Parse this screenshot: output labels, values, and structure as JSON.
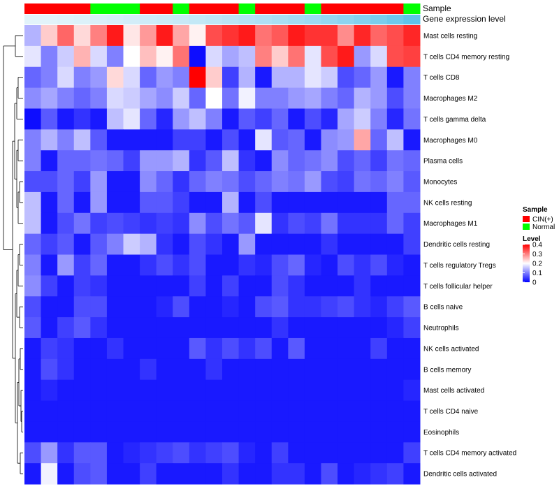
{
  "chart_data": {
    "type": "heatmap",
    "title": "",
    "annotation_tracks": [
      {
        "name": "Sample",
        "label": "Sample"
      },
      {
        "name": "Gene expression level",
        "label": "Gene expression level"
      }
    ],
    "sample_groups": [
      "CIN(+)",
      "CIN(+)",
      "CIN(+)",
      "CIN(+)",
      "Normal",
      "Normal",
      "Normal",
      "CIN(+)",
      "CIN(+)",
      "Normal",
      "CIN(+)",
      "CIN(+)",
      "CIN(+)",
      "Normal",
      "CIN(+)",
      "CIN(+)",
      "CIN(+)",
      "Normal",
      "CIN(+)",
      "CIN(+)",
      "CIN(+)",
      "CIN(+)",
      "CIN(+)",
      "Normal"
    ],
    "expression_level": [
      0.05,
      0.05,
      0.07,
      0.09,
      0.11,
      0.13,
      0.15,
      0.18,
      0.2,
      0.22,
      0.25,
      0.28,
      0.31,
      0.35,
      0.38,
      0.42,
      0.46,
      0.5,
      0.55,
      0.6,
      0.66,
      0.72,
      0.8,
      0.9
    ],
    "rows": [
      "Mast cells resting",
      "T cells CD4 memory resting",
      "T cells CD8",
      "Macrophages M2",
      "T cells gamma delta",
      "Macrophages M0",
      "Plasma cells",
      "Monocytes",
      "NK cells resting",
      "Macrophages M1",
      "Dendritic cells resting",
      "T cells regulatory  Tregs",
      "T cells follicular helper",
      "B cells naive",
      "Neutrophils",
      "NK cells activated",
      "B cells memory",
      "Mast cells activated",
      "T cells CD4 naive",
      "Eosinophils",
      "T cells CD4 memory activated",
      "Dendritic cells activated"
    ],
    "values": [
      [
        0.14,
        0.24,
        0.32,
        0.23,
        0.3,
        0.38,
        0.22,
        0.28,
        0.38,
        0.27,
        0.21,
        0.34,
        0.36,
        0.38,
        0.31,
        0.33,
        0.38,
        0.36,
        0.36,
        0.29,
        0.37,
        0.32,
        0.34,
        0.37
      ],
      [
        0.18,
        0.1,
        0.16,
        0.26,
        0.17,
        0.1,
        0.2,
        0.25,
        0.21,
        0.31,
        0.01,
        0.17,
        0.13,
        0.15,
        0.3,
        0.24,
        0.31,
        0.18,
        0.34,
        0.38,
        0.12,
        0.17,
        0.34,
        0.35
      ],
      [
        0.08,
        0.1,
        0.17,
        0.1,
        0.12,
        0.23,
        0.17,
        0.08,
        0.12,
        0.1,
        0.4,
        0.24,
        0.05,
        0.14,
        0.02,
        0.14,
        0.14,
        0.18,
        0.16,
        0.06,
        0.08,
        0.12,
        0.02,
        0.1
      ],
      [
        0.11,
        0.13,
        0.1,
        0.08,
        0.1,
        0.17,
        0.16,
        0.13,
        0.11,
        0.16,
        0.08,
        0.2,
        0.09,
        0.19,
        0.1,
        0.1,
        0.12,
        0.13,
        0.1,
        0.08,
        0.14,
        0.12,
        0.06,
        0.1
      ],
      [
        0.01,
        0.07,
        0.02,
        0.04,
        0.02,
        0.15,
        0.18,
        0.08,
        0.03,
        0.12,
        0.15,
        0.1,
        0.02,
        0.07,
        0.05,
        0.08,
        0.02,
        0.06,
        0.03,
        0.13,
        0.16,
        0.1,
        0.03,
        0.09
      ],
      [
        0.1,
        0.14,
        0.1,
        0.15,
        0.07,
        0.02,
        0.02,
        0.02,
        0.02,
        0.05,
        0.05,
        0.02,
        0.06,
        0.02,
        0.18,
        0.07,
        0.08,
        0.02,
        0.11,
        0.12,
        0.27,
        0.08,
        0.15,
        0.02
      ],
      [
        0.1,
        0.02,
        0.08,
        0.08,
        0.09,
        0.08,
        0.05,
        0.12,
        0.12,
        0.14,
        0.04,
        0.07,
        0.15,
        0.04,
        0.02,
        0.11,
        0.08,
        0.09,
        0.11,
        0.06,
        0.08,
        0.05,
        0.09,
        0.08
      ],
      [
        0.06,
        0.06,
        0.08,
        0.05,
        0.12,
        0.02,
        0.02,
        0.11,
        0.08,
        0.04,
        0.08,
        0.1,
        0.09,
        0.06,
        0.08,
        0.1,
        0.09,
        0.12,
        0.06,
        0.05,
        0.09,
        0.08,
        0.1,
        0.07
      ],
      [
        0.15,
        0.02,
        0.08,
        0.02,
        0.12,
        0.02,
        0.02,
        0.07,
        0.07,
        0.05,
        0.02,
        0.02,
        0.14,
        0.02,
        0.06,
        0.02,
        0.02,
        0.02,
        0.02,
        0.02,
        0.02,
        0.02,
        0.08,
        0.08
      ],
      [
        0.15,
        0.02,
        0.06,
        0.09,
        0.05,
        0.06,
        0.05,
        0.04,
        0.05,
        0.04,
        0.11,
        0.06,
        0.09,
        0.07,
        0.18,
        0.04,
        0.06,
        0.05,
        0.09,
        0.04,
        0.04,
        0.04,
        0.08,
        0.05
      ],
      [
        0.08,
        0.05,
        0.07,
        0.02,
        0.07,
        0.1,
        0.16,
        0.14,
        0.04,
        0.02,
        0.06,
        0.04,
        0.02,
        0.12,
        0.02,
        0.02,
        0.02,
        0.02,
        0.04,
        0.02,
        0.02,
        0.02,
        0.02,
        0.05
      ],
      [
        0.1,
        0.02,
        0.12,
        0.05,
        0.08,
        0.02,
        0.02,
        0.04,
        0.06,
        0.04,
        0.06,
        0.02,
        0.02,
        0.04,
        0.03,
        0.06,
        0.08,
        0.03,
        0.02,
        0.06,
        0.04,
        0.06,
        0.03,
        0.02
      ],
      [
        0.11,
        0.05,
        0.02,
        0.05,
        0.04,
        0.02,
        0.02,
        0.02,
        0.02,
        0.02,
        0.05,
        0.02,
        0.05,
        0.02,
        0.02,
        0.06,
        0.04,
        0.02,
        0.02,
        0.02,
        0.04,
        0.02,
        0.02,
        0.02
      ],
      [
        0.06,
        0.02,
        0.02,
        0.06,
        0.06,
        0.02,
        0.02,
        0.02,
        0.03,
        0.06,
        0.02,
        0.02,
        0.03,
        0.02,
        0.06,
        0.07,
        0.04,
        0.04,
        0.05,
        0.06,
        0.04,
        0.03,
        0.05,
        0.07
      ],
      [
        0.07,
        0.02,
        0.05,
        0.07,
        0.04,
        0.02,
        0.02,
        0.02,
        0.02,
        0.02,
        0.02,
        0.02,
        0.02,
        0.02,
        0.02,
        0.04,
        0.02,
        0.02,
        0.02,
        0.02,
        0.02,
        0.02,
        0.03,
        0.05
      ],
      [
        0.02,
        0.05,
        0.04,
        0.02,
        0.02,
        0.04,
        0.02,
        0.02,
        0.02,
        0.02,
        0.07,
        0.04,
        0.06,
        0.04,
        0.06,
        0.02,
        0.07,
        0.02,
        0.02,
        0.02,
        0.02,
        0.05,
        0.02,
        0.02
      ],
      [
        0.02,
        0.06,
        0.04,
        0.02,
        0.02,
        0.02,
        0.02,
        0.04,
        0.02,
        0.02,
        0.02,
        0.04,
        0.02,
        0.02,
        0.02,
        0.02,
        0.02,
        0.02,
        0.02,
        0.02,
        0.02,
        0.02,
        0.02,
        0.02
      ],
      [
        0.02,
        0.03,
        0.02,
        0.02,
        0.02,
        0.02,
        0.02,
        0.02,
        0.02,
        0.02,
        0.02,
        0.02,
        0.02,
        0.02,
        0.02,
        0.02,
        0.02,
        0.02,
        0.02,
        0.02,
        0.02,
        0.02,
        0.02,
        0.03
      ],
      [
        0.02,
        0.02,
        0.02,
        0.02,
        0.02,
        0.02,
        0.02,
        0.02,
        0.02,
        0.02,
        0.02,
        0.02,
        0.02,
        0.02,
        0.02,
        0.02,
        0.02,
        0.02,
        0.02,
        0.02,
        0.02,
        0.02,
        0.02,
        0.02
      ],
      [
        0.02,
        0.02,
        0.02,
        0.02,
        0.02,
        0.02,
        0.02,
        0.02,
        0.02,
        0.02,
        0.02,
        0.02,
        0.02,
        0.02,
        0.02,
        0.02,
        0.02,
        0.02,
        0.02,
        0.02,
        0.02,
        0.02,
        0.02,
        0.02
      ],
      [
        0.06,
        0.12,
        0.04,
        0.07,
        0.07,
        0.02,
        0.03,
        0.04,
        0.05,
        0.06,
        0.04,
        0.05,
        0.06,
        0.03,
        0.02,
        0.05,
        0.02,
        0.02,
        0.02,
        0.02,
        0.02,
        0.02,
        0.02,
        0.05
      ],
      [
        0.02,
        0.19,
        0.02,
        0.06,
        0.07,
        0.02,
        0.02,
        0.05,
        0.02,
        0.02,
        0.02,
        0.02,
        0.04,
        0.02,
        0.02,
        0.04,
        0.04,
        0.02,
        0.06,
        0.02,
        0.03,
        0.04,
        0.05,
        0.02
      ]
    ],
    "legend": {
      "sample_title": "Sample",
      "groups": [
        {
          "label": "CIN(+)",
          "color": "#ff0000"
        },
        {
          "label": "Normal",
          "color": "#00ff00"
        }
      ],
      "level_title": "Level",
      "level_ticks": [
        "0.4",
        "0.3",
        "0.2",
        "0.1",
        "0"
      ],
      "level_range": [
        0,
        0.4
      ]
    },
    "colors": {
      "low": "#0000ff",
      "mid": "#ffffff",
      "high": "#ff0000",
      "expression_low": "#eaf6fb",
      "expression_high": "#4fbde8",
      "dendrogram": "#000000"
    },
    "legend_position": "right",
    "grid": false
  }
}
